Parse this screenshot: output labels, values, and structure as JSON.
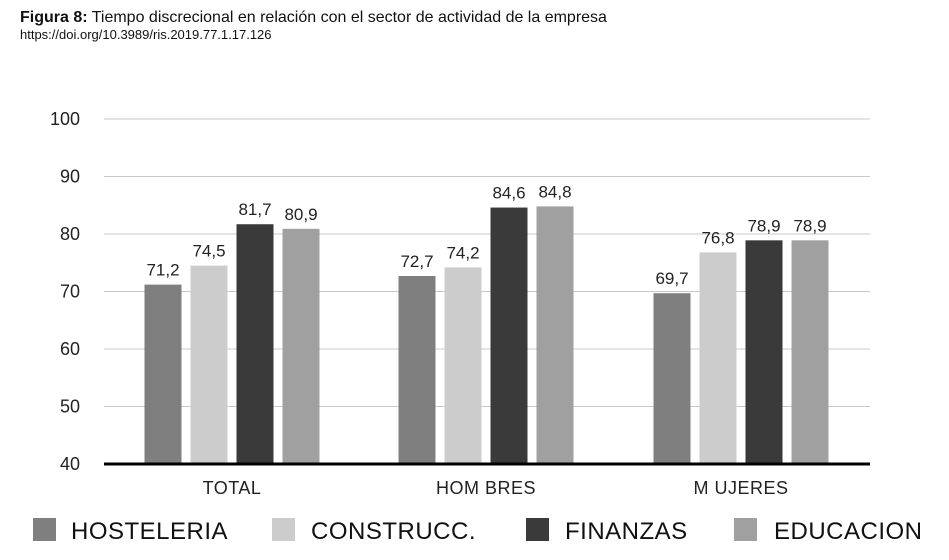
{
  "header": {
    "figure_label": "Figura 8:",
    "figure_title": "Tiempo discrecional en relación con el sector de actividad de la empresa",
    "doi": "https://doi.org/10.3989/ris.2019.77.1.17.126"
  },
  "chart_data": {
    "type": "bar",
    "title": "Tiempo discrecional en relación con el sector de actividad de la empresa",
    "xlabel": "",
    "ylabel": "",
    "categories": [
      "TOTAL",
      "HOMBRES",
      "MUJERES"
    ],
    "category_display": [
      "TOTAL",
      "HOM BRES",
      "M UJERES"
    ],
    "value_labels": [
      [
        "71,2",
        "74,5",
        "81,7",
        "80,9"
      ],
      [
        "72,7",
        "74,2",
        "84,6",
        "84,8"
      ],
      [
        "69,7",
        "76,8",
        "78,9",
        "78,9"
      ]
    ],
    "series": [
      {
        "name": "HOSTELERIA",
        "values": [
          71.2,
          72.7,
          69.7
        ],
        "color": "#7f7f7f"
      },
      {
        "name": "CONSTRUCC.",
        "values": [
          74.5,
          74.2,
          76.8
        ],
        "color": "#cccccc"
      },
      {
        "name": "FINANZAS",
        "values": [
          81.7,
          84.6,
          78.9
        ],
        "color": "#3a3a3a"
      },
      {
        "name": "EDUCACION",
        "values": [
          80.9,
          84.8,
          78.9
        ],
        "color": "#a0a0a0"
      }
    ],
    "ylim": [
      40,
      100
    ],
    "yticks": [
      40,
      50,
      60,
      70,
      80,
      90,
      100
    ],
    "grid": true,
    "legend_position": "bottom"
  }
}
